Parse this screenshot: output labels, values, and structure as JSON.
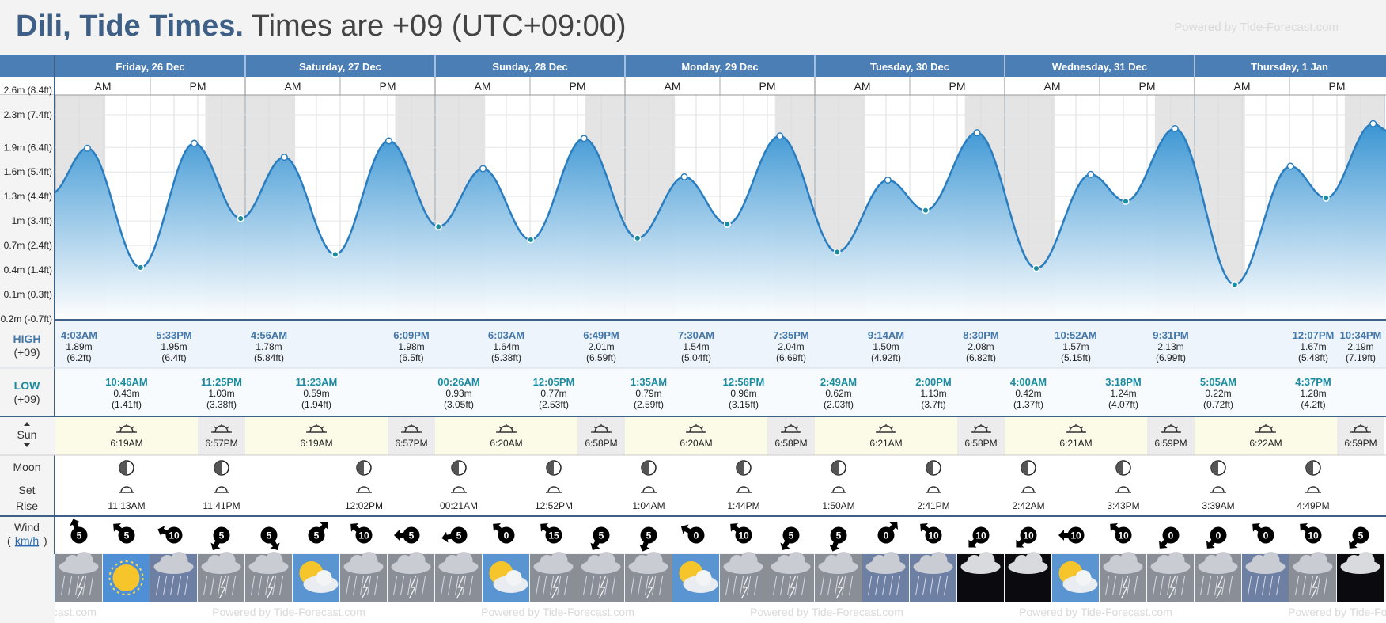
{
  "header": {
    "city_title": "Dili, Tide Times.",
    "timezone_text": "Times are +09 (UTC+09:00)",
    "powered_by": "Powered by Tide-Forecast.com"
  },
  "days": [
    {
      "label": "Friday, 26 Dec"
    },
    {
      "label": "Saturday, 27 Dec"
    },
    {
      "label": "Sunday, 28 Dec"
    },
    {
      "label": "Monday, 29 Dec"
    },
    {
      "label": "Tuesday, 30 Dec"
    },
    {
      "label": "Wednesday, 31 Dec"
    },
    {
      "label": "Thursday, 1 Jan"
    }
  ],
  "am_label": "AM",
  "pm_label": "PM",
  "row_labels": {
    "high": "HIGH",
    "high_tz": "(+09)",
    "low": "LOW",
    "low_tz": "(+09)",
    "sun": "Sun",
    "moon": "Moon",
    "moon_set": "Set",
    "moon_rise": "Rise",
    "wind": "Wind",
    "wind_unit": "km/h"
  },
  "chart_data": {
    "type": "area",
    "y_ticks": [
      {
        "value": 2.6,
        "label": "2.6m (8.4ft)"
      },
      {
        "value": 2.3,
        "label": "2.3m (7.4ft)"
      },
      {
        "value": 1.9,
        "label": "1.9m (6.4ft)"
      },
      {
        "value": 1.6,
        "label": "1.6m (5.4ft)"
      },
      {
        "value": 1.3,
        "label": "1.3m (4.4ft)"
      },
      {
        "value": 1.0,
        "label": "1m (3.4ft)"
      },
      {
        "value": 0.7,
        "label": "0.7m (2.4ft)"
      },
      {
        "value": 0.4,
        "label": "0.4m (1.4ft)"
      },
      {
        "value": 0.1,
        "label": "0.1m (0.3ft)"
      },
      {
        "value": -0.2,
        "label": "-0.2m (-0.7ft)"
      }
    ],
    "ylim": [
      -0.2,
      2.6
    ],
    "start_level": 1.33,
    "end_level": 2.1,
    "tides": [
      {
        "day": 0,
        "hour": 4.05,
        "type": "high",
        "time": "4:03AM",
        "m": "1.89m",
        "ft": "(6.2ft)",
        "value": 1.89
      },
      {
        "day": 0,
        "hour": 10.77,
        "type": "low",
        "time": "10:46AM",
        "m": "0.43m",
        "ft": "(1.41ft)",
        "value": 0.43
      },
      {
        "day": 0,
        "hour": 17.55,
        "type": "high",
        "time": "5:33PM",
        "m": "1.95m",
        "ft": "(6.4ft)",
        "value": 1.95
      },
      {
        "day": 0,
        "hour": 23.42,
        "type": "low",
        "time": "11:25PM",
        "m": "1.03m",
        "ft": "(3.38ft)",
        "value": 1.03
      },
      {
        "day": 1,
        "hour": 4.93,
        "type": "high",
        "time": "4:56AM",
        "m": "1.78m",
        "ft": "(5.84ft)",
        "value": 1.78
      },
      {
        "day": 1,
        "hour": 11.38,
        "type": "low",
        "time": "11:23AM",
        "m": "0.59m",
        "ft": "(1.94ft)",
        "value": 0.59
      },
      {
        "day": 1,
        "hour": 18.15,
        "type": "high",
        "time": "6:09PM",
        "m": "1.98m",
        "ft": "(6.5ft)",
        "value": 1.98
      },
      {
        "day": 2,
        "hour": 0.43,
        "type": "low",
        "time": "00:26AM",
        "m": "0.93m",
        "ft": "(3.05ft)",
        "value": 0.93
      },
      {
        "day": 2,
        "hour": 6.05,
        "type": "high",
        "time": "6:03AM",
        "m": "1.64m",
        "ft": "(5.38ft)",
        "value": 1.64
      },
      {
        "day": 2,
        "hour": 12.08,
        "type": "low",
        "time": "12:05PM",
        "m": "0.77m",
        "ft": "(2.53ft)",
        "value": 0.77
      },
      {
        "day": 2,
        "hour": 18.82,
        "type": "high",
        "time": "6:49PM",
        "m": "2.01m",
        "ft": "(6.59ft)",
        "value": 2.01
      },
      {
        "day": 3,
        "hour": 1.58,
        "type": "low",
        "time": "1:35AM",
        "m": "0.79m",
        "ft": "(2.59ft)",
        "value": 0.79
      },
      {
        "day": 3,
        "hour": 7.5,
        "type": "high",
        "time": "7:30AM",
        "m": "1.54m",
        "ft": "(5.04ft)",
        "value": 1.54
      },
      {
        "day": 3,
        "hour": 12.93,
        "type": "low",
        "time": "12:56PM",
        "m": "0.96m",
        "ft": "(3.15ft)",
        "value": 0.96
      },
      {
        "day": 3,
        "hour": 19.58,
        "type": "high",
        "time": "7:35PM",
        "m": "2.04m",
        "ft": "(6.69ft)",
        "value": 2.04
      },
      {
        "day": 4,
        "hour": 2.82,
        "type": "low",
        "time": "2:49AM",
        "m": "0.62m",
        "ft": "(2.03ft)",
        "value": 0.62
      },
      {
        "day": 4,
        "hour": 9.23,
        "type": "high",
        "time": "9:14AM",
        "m": "1.50m",
        "ft": "(4.92ft)",
        "value": 1.5
      },
      {
        "day": 4,
        "hour": 14.0,
        "type": "low",
        "time": "2:00PM",
        "m": "1.13m",
        "ft": "(3.7ft)",
        "value": 1.13
      },
      {
        "day": 4,
        "hour": 20.5,
        "type": "high",
        "time": "8:30PM",
        "m": "2.08m",
        "ft": "(6.82ft)",
        "value": 2.08
      },
      {
        "day": 5,
        "hour": 4.0,
        "type": "low",
        "time": "4:00AM",
        "m": "0.42m",
        "ft": "(1.37ft)",
        "value": 0.42
      },
      {
        "day": 5,
        "hour": 10.87,
        "type": "high",
        "time": "10:52AM",
        "m": "1.57m",
        "ft": "(5.15ft)",
        "value": 1.57
      },
      {
        "day": 5,
        "hour": 15.3,
        "type": "low",
        "time": "3:18PM",
        "m": "1.24m",
        "ft": "(4.07ft)",
        "value": 1.24
      },
      {
        "day": 5,
        "hour": 21.52,
        "type": "high",
        "time": "9:31PM",
        "m": "2.13m",
        "ft": "(6.99ft)",
        "value": 2.13
      },
      {
        "day": 6,
        "hour": 5.08,
        "type": "low",
        "time": "5:05AM",
        "m": "0.22m",
        "ft": "(0.72ft)",
        "value": 0.22
      },
      {
        "day": 6,
        "hour": 12.12,
        "type": "high",
        "time": "12:07PM",
        "m": "1.67m",
        "ft": "(5.48ft)",
        "value": 1.67
      },
      {
        "day": 6,
        "hour": 16.62,
        "type": "low",
        "time": "4:37PM",
        "m": "1.28m",
        "ft": "(4.2ft)",
        "value": 1.28
      },
      {
        "day": 6,
        "hour": 22.57,
        "type": "high",
        "time": "10:34PM",
        "m": "2.19m",
        "ft": "(7.19ft)",
        "value": 2.19
      }
    ]
  },
  "sun": [
    {
      "rise": "6:19AM",
      "set": "6:57PM",
      "rise_h": 6.32,
      "set_h": 18.95
    },
    {
      "rise": "6:19AM",
      "set": "6:57PM",
      "rise_h": 6.32,
      "set_h": 18.95
    },
    {
      "rise": "6:20AM",
      "set": "6:58PM",
      "rise_h": 6.33,
      "set_h": 18.97
    },
    {
      "rise": "6:20AM",
      "set": "6:58PM",
      "rise_h": 6.33,
      "set_h": 18.97
    },
    {
      "rise": "6:21AM",
      "set": "6:58PM",
      "rise_h": 6.35,
      "set_h": 18.97
    },
    {
      "rise": "6:21AM",
      "set": "6:59PM",
      "rise_h": 6.35,
      "set_h": 18.98
    },
    {
      "rise": "6:22AM",
      "set": "6:59PM",
      "rise_h": 6.37,
      "set_h": 18.98
    }
  ],
  "moon": [
    {
      "day": 0,
      "slot": 1,
      "type": "set",
      "time": "11:13AM"
    },
    {
      "day": 0,
      "slot": 3,
      "type": "rise",
      "time": "11:41PM"
    },
    {
      "day": 1,
      "slot": 2,
      "type": "set",
      "time": "12:02PM"
    },
    {
      "day": 2,
      "slot": 0,
      "type": "rise",
      "time": "00:21AM"
    },
    {
      "day": 2,
      "slot": 2,
      "type": "set",
      "time": "12:52PM"
    },
    {
      "day": 3,
      "slot": 0,
      "type": "rise",
      "time": "1:04AM"
    },
    {
      "day": 3,
      "slot": 2,
      "type": "set",
      "time": "1:44PM"
    },
    {
      "day": 4,
      "slot": 0,
      "type": "rise",
      "time": "1:50AM"
    },
    {
      "day": 4,
      "slot": 2,
      "type": "set",
      "time": "2:41PM"
    },
    {
      "day": 5,
      "slot": 0,
      "type": "rise",
      "time": "2:42AM"
    },
    {
      "day": 5,
      "slot": 2,
      "type": "set",
      "time": "3:43PM"
    },
    {
      "day": 6,
      "slot": 0,
      "type": "rise",
      "time": "3:39AM"
    },
    {
      "day": 6,
      "slot": 2,
      "type": "set",
      "time": "4:49PM"
    }
  ],
  "wind": [
    {
      "v": "5",
      "dir": 160
    },
    {
      "v": "5",
      "dir": 130
    },
    {
      "v": "10",
      "dir": 110
    },
    {
      "v": "5",
      "dir": 30
    },
    {
      "v": "5",
      "dir": 330
    },
    {
      "v": "5",
      "dir": 220
    },
    {
      "v": "10",
      "dir": 130
    },
    {
      "v": "5",
      "dir": 90
    },
    {
      "v": "5",
      "dir": 80
    },
    {
      "v": "0",
      "dir": 130
    },
    {
      "v": "15",
      "dir": 130
    },
    {
      "v": "5",
      "dir": 30
    },
    {
      "v": "5",
      "dir": 20
    },
    {
      "v": "0",
      "dir": 120
    },
    {
      "v": "10",
      "dir": 130
    },
    {
      "v": "5",
      "dir": 30
    },
    {
      "v": "5",
      "dir": 20
    },
    {
      "v": "0",
      "dir": 220
    },
    {
      "v": "10",
      "dir": 130
    },
    {
      "v": "10",
      "dir": 45
    },
    {
      "v": "10",
      "dir": 45
    },
    {
      "v": "10",
      "dir": 90
    },
    {
      "v": "10",
      "dir": 130
    },
    {
      "v": "0",
      "dir": 40
    },
    {
      "v": "0",
      "dir": 40
    },
    {
      "v": "0",
      "dir": 130
    },
    {
      "v": "10",
      "dir": 130
    },
    {
      "v": "5",
      "dir": 40
    }
  ],
  "weather": [
    "storm",
    "sunny",
    "rain",
    "storm",
    "storm",
    "partly-cloudy",
    "storm",
    "storm",
    "storm",
    "partly-cloudy",
    "storm",
    "storm",
    "storm",
    "partly-cloudy",
    "storm",
    "storm",
    "storm",
    "rain",
    "rain",
    "night-cloudy",
    "night-cloudy",
    "partly-cloudy",
    "storm",
    "storm",
    "storm",
    "rain",
    "storm",
    "night-cloudy"
  ],
  "colors": {
    "header_blue": "#4b7eb4",
    "tide_fill": "#3a95d3",
    "tide_line": "#2a7ec0",
    "high_text": "#4478aa",
    "low_text": "#1b8ca0",
    "night_shade": "#e4e4e4",
    "sun_bg": "#fbfbe8"
  }
}
